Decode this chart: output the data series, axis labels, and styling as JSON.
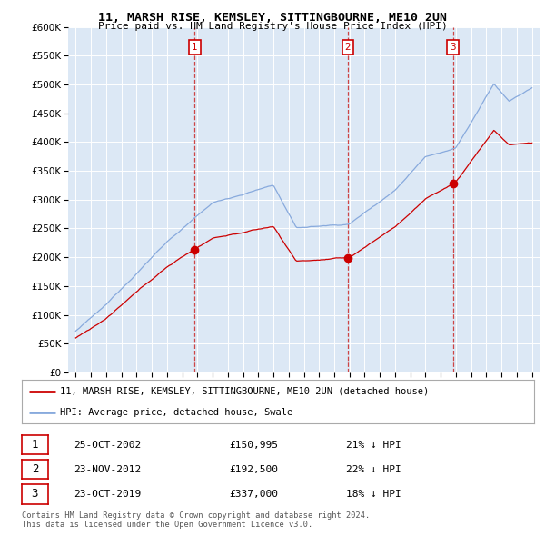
{
  "title1": "11, MARSH RISE, KEMSLEY, SITTINGBOURNE, ME10 2UN",
  "title2": "Price paid vs. HM Land Registry's House Price Index (HPI)",
  "plot_bg": "#dce8f5",
  "purchases": [
    {
      "date_num": 2002.81,
      "price": 150995,
      "label": "1"
    },
    {
      "date_num": 2012.9,
      "price": 192500,
      "label": "2"
    },
    {
      "date_num": 2019.81,
      "price": 337000,
      "label": "3"
    }
  ],
  "vlines": [
    2002.81,
    2012.9,
    2019.81
  ],
  "legend_line1": "11, MARSH RISE, KEMSLEY, SITTINGBOURNE, ME10 2UN (detached house)",
  "legend_line2": "HPI: Average price, detached house, Swale",
  "legend_color1": "#cc0000",
  "legend_color2": "#88aadd",
  "table_rows": [
    {
      "num": "1",
      "date": "25-OCT-2002",
      "price": "£150,995",
      "pct": "21% ↓ HPI"
    },
    {
      "num": "2",
      "date": "23-NOV-2012",
      "price": "£192,500",
      "pct": "22% ↓ HPI"
    },
    {
      "num": "3",
      "date": "23-OCT-2019",
      "price": "£337,000",
      "pct": "18% ↓ HPI"
    }
  ],
  "footnote": "Contains HM Land Registry data © Crown copyright and database right 2024.\nThis data is licensed under the Open Government Licence v3.0.",
  "xmin": 1994.5,
  "xmax": 2025.5,
  "ymin": 0,
  "ymax": 600000,
  "ytick_values": [
    0,
    50000,
    100000,
    150000,
    200000,
    250000,
    300000,
    350000,
    400000,
    450000,
    500000,
    550000,
    600000
  ]
}
